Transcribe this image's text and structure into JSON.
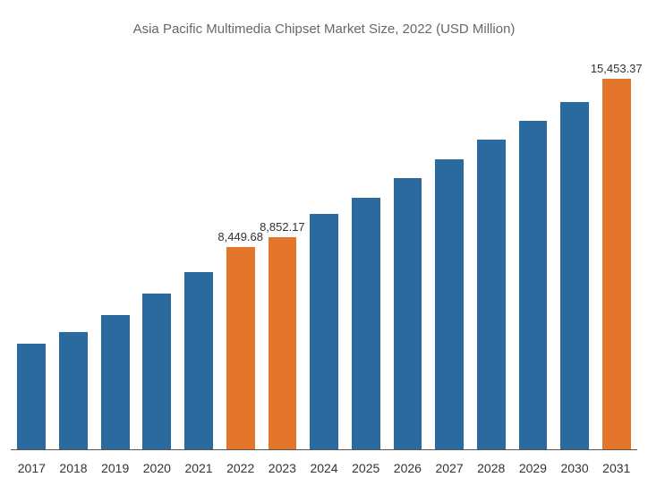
{
  "chart": {
    "type": "bar",
    "title": "Asia Pacific Multimedia Chipset Market Size, 2022 (USD Million)",
    "title_fontsize": 15,
    "title_color": "#5f6a72",
    "background_color": "#ffffff",
    "axis_color": "#555555",
    "label_color": "#333333",
    "label_fontsize": 14,
    "value_label_fontsize": 13,
    "bar_width_ratio": 0.68,
    "ylim_max": 16500,
    "categories": [
      "2017",
      "2018",
      "2019",
      "2020",
      "2021",
      "2022",
      "2023",
      "2024",
      "2025",
      "2026",
      "2027",
      "2028",
      "2029",
      "2030",
      "2031"
    ],
    "values": [
      4400,
      4900,
      5600,
      6500,
      7400,
      8449.68,
      8852.17,
      9800,
      10500,
      11300,
      12100,
      12900,
      13700,
      14500,
      15453.37
    ],
    "bar_colors": [
      "#2a6a9e",
      "#2a6a9e",
      "#2a6a9e",
      "#2a6a9e",
      "#2a6a9e",
      "#e3762b",
      "#e3762b",
      "#2a6a9e",
      "#2a6a9e",
      "#2a6a9e",
      "#2a6a9e",
      "#2a6a9e",
      "#2a6a9e",
      "#2a6a9e",
      "#e3762b"
    ],
    "value_labels": {
      "5": "8,449.68",
      "6": "8,852.17",
      "14": "15,453.37"
    }
  }
}
